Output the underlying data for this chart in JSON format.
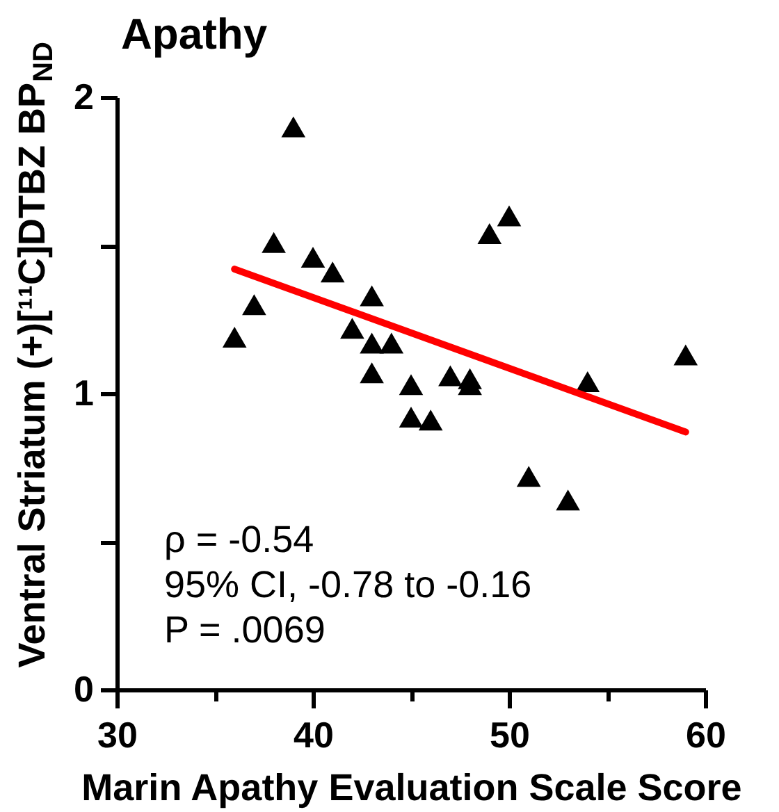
{
  "chart_data": {
    "type": "scatter",
    "title": "Apathy",
    "xlabel": "Marin Apathy Evaluation Scale Score",
    "ylabel": "Ventral Striatum (+)[¹¹C]DTBZ BP$_{ND}$",
    "xlim": [
      30,
      60
    ],
    "xticks": [
      30,
      {
        "value": 35,
        "label": null
      },
      40,
      {
        "value": 45,
        "label": null
      },
      50,
      {
        "value": 55,
        "label": null
      },
      60
    ],
    "ylim": [
      0,
      2
    ],
    "yticks": [
      0,
      {
        "value": 0.5,
        "label": null
      },
      1,
      {
        "value": 1.5,
        "label": null
      },
      2
    ],
    "series": [
      {
        "marker": "triangle",
        "color": "#000000",
        "x": [
          36,
          37,
          38,
          39,
          40,
          41,
          42,
          43,
          43,
          43,
          44,
          45,
          45,
          46,
          47,
          48,
          48,
          49,
          50,
          51,
          53,
          54,
          59
        ],
        "values": [
          1.19,
          1.3,
          1.51,
          1.9,
          1.46,
          1.41,
          1.22,
          1.33,
          1.17,
          1.07,
          1.17,
          1.03,
          0.92,
          0.91,
          1.06,
          1.05,
          1.03,
          1.54,
          1.6,
          0.72,
          0.64,
          1.04,
          1.13
        ]
      },
      {
        "type": "line",
        "marker": "none",
        "color": "#ff0000",
        "x": [
          36,
          59
        ],
        "values": [
          1.42,
          0.87
        ]
      }
    ],
    "annotations": [
      "ρ = -0.54",
      "95% CI, -0.78 to -0.16",
      "P = .0069"
    ]
  }
}
